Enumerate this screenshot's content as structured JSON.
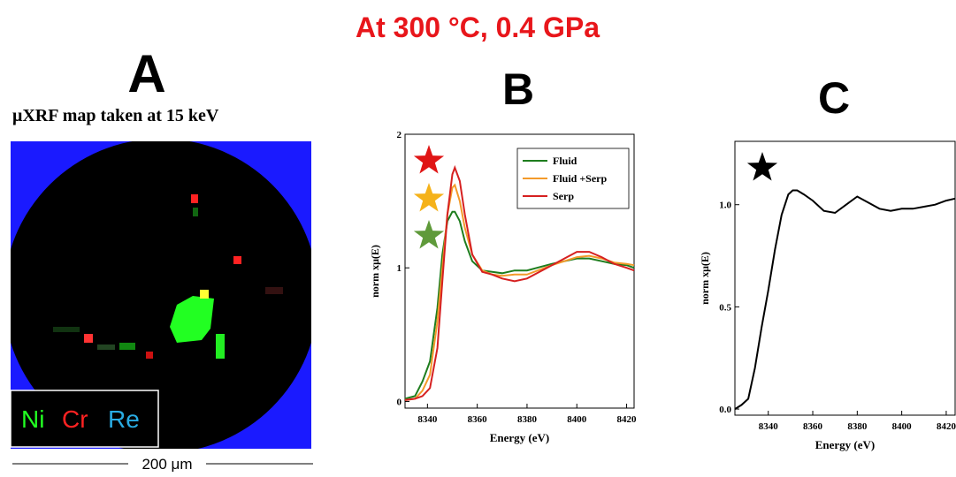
{
  "title": "At 300 °C, 0.4 GPa",
  "panels": [
    "A",
    "B",
    "C"
  ],
  "map": {
    "caption": "μXRF map taken at 15 keV",
    "legend": [
      "Ni",
      "Cr",
      "Re"
    ],
    "scale_bar": "200 μm"
  },
  "chart_data": [
    {
      "type": "line",
      "xlabel": "Energy (eV)",
      "ylabel": "norm xμ(E)",
      "x": [
        8331,
        8335,
        8338,
        8341,
        8344,
        8346,
        8348,
        8350,
        8351,
        8353,
        8355,
        8358,
        8362,
        8366,
        8370,
        8375,
        8380,
        8390,
        8400,
        8405,
        8410,
        8415,
        8420,
        8423
      ],
      "series": [
        {
          "name": "Fluid",
          "color": "#1e7d1e",
          "values": [
            0.02,
            0.04,
            0.15,
            0.3,
            0.7,
            1.1,
            1.35,
            1.42,
            1.42,
            1.35,
            1.2,
            1.05,
            0.98,
            0.97,
            0.96,
            0.98,
            0.98,
            1.03,
            1.07,
            1.07,
            1.05,
            1.03,
            1.02,
            1.0
          ]
        },
        {
          "name": "Fluid +Serp",
          "color": "#f39a2b",
          "values": [
            0.01,
            0.02,
            0.08,
            0.2,
            0.6,
            1.0,
            1.4,
            1.6,
            1.62,
            1.5,
            1.3,
            1.1,
            0.98,
            0.95,
            0.94,
            0.95,
            0.95,
            1.02,
            1.08,
            1.09,
            1.07,
            1.04,
            1.03,
            1.02
          ]
        },
        {
          "name": "Serp",
          "color": "#d62020",
          "values": [
            0.01,
            0.02,
            0.04,
            0.1,
            0.4,
            0.9,
            1.4,
            1.7,
            1.75,
            1.65,
            1.4,
            1.1,
            0.97,
            0.95,
            0.92,
            0.9,
            0.92,
            1.02,
            1.12,
            1.12,
            1.08,
            1.03,
            1.0,
            0.98
          ]
        }
      ],
      "xlim": [
        8331,
        8423
      ],
      "ylim": [
        -0.05,
        2
      ],
      "xticks": [
        8340,
        8360,
        8380,
        8400,
        8420
      ],
      "yticks": [
        0,
        1,
        2
      ],
      "legend": "upper right"
    },
    {
      "type": "line",
      "xlabel": "Energy (eV)",
      "ylabel": "norm xμ(E)",
      "x": [
        8325,
        8328,
        8331,
        8334,
        8337,
        8340,
        8343,
        8346,
        8349,
        8351,
        8353,
        8356,
        8360,
        8365,
        8370,
        8375,
        8380,
        8385,
        8390,
        8395,
        8400,
        8405,
        8410,
        8415,
        8420,
        8424
      ],
      "values": [
        0.0,
        0.02,
        0.05,
        0.2,
        0.4,
        0.58,
        0.78,
        0.95,
        1.05,
        1.07,
        1.07,
        1.05,
        1.02,
        0.97,
        0.96,
        1.0,
        1.04,
        1.01,
        0.98,
        0.97,
        0.98,
        0.98,
        0.99,
        1.0,
        1.02,
        1.03
      ],
      "color": "#000000",
      "xlim": [
        8325,
        8424
      ],
      "ylim": [
        -0.03,
        1.31
      ],
      "xticks": [
        8340,
        8360,
        8380,
        8400,
        8420
      ],
      "yticks": [
        {
          "value": 0,
          "label": "0.0"
        },
        {
          "value": 0.5,
          "label": "0.5"
        },
        {
          "value": 1,
          "label": "1.0"
        }
      ]
    }
  ]
}
